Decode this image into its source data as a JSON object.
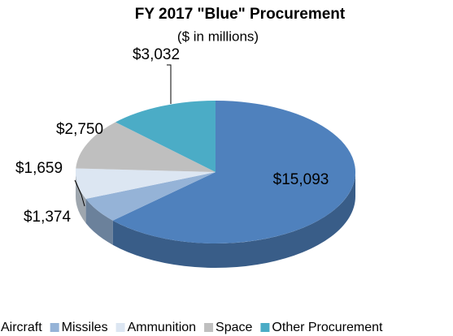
{
  "chart_data": {
    "type": "pie",
    "title": "FY 2017 \"Blue\" Procurement",
    "subtitle": "($ in millions)",
    "categories": [
      "Aircraft",
      "Missiles",
      "Ammunition",
      "Space",
      "Other Procurement"
    ],
    "values": [
      15093,
      1374,
      1659,
      2750,
      3032
    ],
    "value_labels": [
      "$15,093",
      "$1,374",
      "$1,659",
      "$2,750",
      "$3,032"
    ],
    "colors": [
      "#4f81bd",
      "#95b3d7",
      "#dce6f2",
      "#bfbfbf",
      "#4bacc6"
    ],
    "legend": "bottom"
  }
}
